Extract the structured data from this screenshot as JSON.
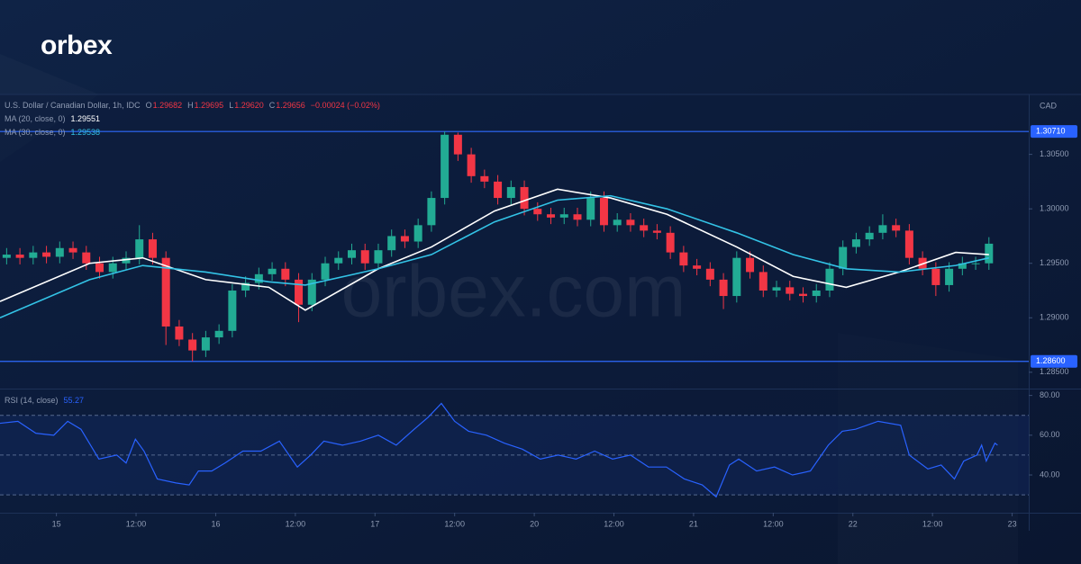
{
  "logo": "orbex",
  "watermark": "orbex.com",
  "chart_data": [
    {
      "type": "candlestick",
      "title": "U.S. Dollar / Canadian Dollar, 1h, IDC",
      "ohlc_header": [
        {
          "key": "O",
          "value": "1.29682"
        },
        {
          "key": "H",
          "value": "1.29695"
        },
        {
          "key": "L",
          "value": "1.29620"
        },
        {
          "key": "C",
          "value": "1.29656"
        }
      ],
      "change": "−0.00024 (−0.02%)",
      "currency": "CAD",
      "up_color": "#22ab94",
      "down_color": "#f23645",
      "x": [
        1,
        3,
        5,
        7,
        9,
        11,
        13,
        15,
        17,
        19,
        21,
        23,
        25,
        27,
        29,
        31,
        33,
        35,
        37,
        39,
        41,
        43,
        45,
        47,
        49,
        51,
        53,
        55,
        57,
        59,
        61,
        63,
        65,
        67,
        69,
        71,
        73,
        75,
        77,
        79,
        81,
        83,
        85,
        87,
        89,
        91,
        93,
        95,
        97,
        99,
        101,
        103,
        105,
        107,
        109,
        111,
        113,
        115,
        117,
        119,
        121,
        123,
        125,
        127,
        129,
        131,
        133,
        135,
        137,
        139,
        141,
        143,
        145,
        147,
        149
      ],
      "open": [
        1.2955,
        1.2958,
        1.2955,
        1.296,
        1.2956,
        1.2964,
        1.296,
        1.295,
        1.2942,
        1.295,
        1.2955,
        1.2972,
        1.2955,
        1.2892,
        1.288,
        1.287,
        1.2882,
        1.2888,
        1.2925,
        1.2932,
        1.294,
        1.2945,
        1.2935,
        1.2912,
        1.2935,
        1.295,
        1.2955,
        1.2962,
        1.295,
        1.2962,
        1.2975,
        1.297,
        1.2985,
        1.301,
        1.3068,
        1.305,
        1.303,
        1.3025,
        1.301,
        1.302,
        1.3,
        1.2995,
        1.2992,
        1.2995,
        1.299,
        1.301,
        1.2985,
        1.299,
        1.2985,
        1.298,
        1.2978,
        1.296,
        1.2948,
        1.2945,
        1.2935,
        1.292,
        1.2955,
        1.2942,
        1.2925,
        1.2928,
        1.2922,
        1.292,
        1.2925,
        1.2945,
        1.2965,
        1.2972,
        1.2978,
        1.2985,
        1.298,
        1.2955,
        1.2945,
        1.293,
        1.2945,
        1.295,
        1.295
      ],
      "high": [
        1.2964,
        1.2964,
        1.2966,
        1.2966,
        1.297,
        1.297,
        1.2966,
        1.2956,
        1.2956,
        1.2961,
        1.2985,
        1.2978,
        1.2961,
        1.2898,
        1.2886,
        1.2888,
        1.2894,
        1.2931,
        1.2938,
        1.2946,
        1.2951,
        1.2951,
        1.2941,
        1.2941,
        1.2956,
        1.2961,
        1.2968,
        1.2968,
        1.2968,
        1.2981,
        1.2981,
        1.2991,
        1.3016,
        1.3071,
        1.307,
        1.3056,
        1.3036,
        1.3031,
        1.3026,
        1.3026,
        1.3006,
        1.3001,
        1.3001,
        1.3001,
        1.3016,
        1.3016,
        1.2996,
        1.2996,
        1.2991,
        1.2986,
        1.2984,
        1.2966,
        1.2954,
        1.2951,
        1.2941,
        1.2961,
        1.2961,
        1.2948,
        1.2934,
        1.2934,
        1.2928,
        1.2931,
        1.2951,
        1.2971,
        1.2978,
        1.2984,
        1.2995,
        1.2991,
        1.2986,
        1.2961,
        1.2951,
        1.2951,
        1.2956,
        1.2956,
        1.2974
      ],
      "low": [
        1.2949,
        1.2949,
        1.2949,
        1.295,
        1.295,
        1.2954,
        1.2944,
        1.2936,
        1.2936,
        1.2944,
        1.2949,
        1.2949,
        1.2875,
        1.2874,
        1.286,
        1.2864,
        1.2876,
        1.2882,
        1.2919,
        1.2926,
        1.2934,
        1.2929,
        1.2896,
        1.2906,
        1.2929,
        1.2944,
        1.2949,
        1.2944,
        1.2944,
        1.2956,
        1.2964,
        1.2964,
        1.2979,
        1.3004,
        1.3044,
        1.3024,
        1.3019,
        1.3004,
        1.3004,
        1.2994,
        1.2989,
        1.2986,
        1.2986,
        1.2984,
        1.2984,
        1.2979,
        1.2979,
        1.2979,
        1.2974,
        1.2972,
        1.2954,
        1.2942,
        1.2939,
        1.2929,
        1.2908,
        1.2914,
        1.2936,
        1.2919,
        1.2919,
        1.2916,
        1.2914,
        1.2914,
        1.2919,
        1.2939,
        1.2959,
        1.2966,
        1.2972,
        1.2974,
        1.2949,
        1.2939,
        1.292,
        1.2924,
        1.2939,
        1.2944,
        1.2944
      ],
      "close": [
        1.2958,
        1.2955,
        1.296,
        1.2956,
        1.2964,
        1.296,
        1.295,
        1.2942,
        1.295,
        1.2955,
        1.2972,
        1.2955,
        1.2892,
        1.288,
        1.287,
        1.2882,
        1.2888,
        1.2925,
        1.2932,
        1.294,
        1.2945,
        1.2935,
        1.2912,
        1.2935,
        1.295,
        1.2955,
        1.2962,
        1.295,
        1.2962,
        1.2975,
        1.297,
        1.2985,
        1.301,
        1.3068,
        1.305,
        1.303,
        1.3025,
        1.301,
        1.302,
        1.3,
        1.2995,
        1.2992,
        1.2995,
        1.299,
        1.301,
        1.2985,
        1.299,
        1.2985,
        1.298,
        1.2978,
        1.296,
        1.2948,
        1.2945,
        1.2935,
        1.292,
        1.2955,
        1.2942,
        1.2925,
        1.2928,
        1.2922,
        1.292,
        1.2925,
        1.2945,
        1.2965,
        1.2972,
        1.2978,
        1.2985,
        1.298,
        1.2955,
        1.2945,
        1.293,
        1.2945,
        1.295,
        1.295,
        1.2968
      ],
      "moving_averages": [
        {
          "name": "MA (20, close, 0)",
          "last": "1.29551",
          "color": "#ffffff",
          "x": [
            0,
            13.5,
            21.5,
            31,
            40.5,
            46,
            57,
            65,
            74.5,
            84,
            92,
            100.5,
            111,
            119.5,
            127.5,
            135.5,
            144,
            149
          ],
          "values": [
            1.2915,
            1.295,
            1.2955,
            1.2935,
            1.2928,
            1.2907,
            1.2945,
            1.2965,
            1.2998,
            1.3018,
            1.301,
            1.2995,
            1.2965,
            1.2938,
            1.2928,
            1.2942,
            1.296,
            1.2958
          ]
        },
        {
          "name": "MA (30, close, 0)",
          "last": "1.29538",
          "color": "#33c3e6",
          "x": [
            0,
            13.5,
            21.5,
            31,
            40.5,
            46,
            57,
            65,
            74.5,
            84,
            92,
            100.5,
            111,
            119.5,
            127.5,
            135.5,
            144,
            149
          ],
          "values": [
            1.29,
            1.2935,
            1.2948,
            1.2942,
            1.2933,
            1.293,
            1.2945,
            1.2958,
            1.2988,
            1.3008,
            1.3012,
            1.3,
            1.2978,
            1.2958,
            1.2945,
            1.2942,
            1.2948,
            1.2955
          ]
        }
      ],
      "levels": [
        {
          "value": 1.3071,
          "label": "1.30710"
        },
        {
          "value": 1.286,
          "label": "1.28600"
        }
      ],
      "xlim": [
        0,
        155
      ],
      "ylim": [
        1.2835,
        1.3105
      ],
      "yticks": [
        {
          "value": 1.305,
          "label": "1.30500"
        },
        {
          "value": 1.3,
          "label": "1.30000"
        },
        {
          "value": 1.295,
          "label": "1.29500"
        },
        {
          "value": 1.29,
          "label": "1.29000"
        },
        {
          "value": 1.285,
          "label": "1.28500"
        }
      ]
    },
    {
      "type": "line",
      "title": "RSI (14, close)",
      "last": "55.27",
      "color": "#2962ff",
      "x": [
        0,
        2.7,
        5.4,
        8.1,
        10.2,
        12.2,
        14.9,
        17.6,
        19,
        20.4,
        21.7,
        23.7,
        26.5,
        28.5,
        29.9,
        31.9,
        33.9,
        36.6,
        39.3,
        42.1,
        44.8,
        46.8,
        48.8,
        51.6,
        54.3,
        57,
        59.7,
        62.4,
        64.5,
        66.5,
        68.5,
        70.6,
        73.3,
        76,
        78.7,
        81.4,
        84.1,
        86.8,
        89.6,
        92.3,
        95,
        97.7,
        100.4,
        103.1,
        105.8,
        107.9,
        109.9,
        111.3,
        114,
        116.7,
        119.4,
        122.1,
        124.8,
        126.9,
        128.9,
        132.3,
        135.7,
        137,
        139.8,
        141.8,
        143.8,
        145.2,
        147.2,
        147.9,
        148.6,
        149.9,
        150.3
      ],
      "values": [
        66,
        67,
        61,
        60,
        67,
        63,
        48,
        50,
        46,
        58,
        52,
        38,
        36,
        35,
        42,
        42,
        46,
        52,
        52,
        57,
        44,
        50,
        57,
        55,
        57,
        60,
        55,
        63,
        69,
        76,
        67,
        62,
        60,
        56,
        53,
        48,
        50,
        48,
        52,
        48,
        50,
        44,
        44,
        38,
        35,
        29,
        45,
        48,
        42,
        44,
        40,
        42,
        55,
        62,
        63,
        67,
        65,
        50,
        43,
        45,
        38,
        47,
        50,
        55,
        47,
        56,
        55
      ],
      "xlim": [
        0,
        155
      ],
      "ylim": [
        21,
        83
      ],
      "yticks": [
        {
          "value": 40,
          "label": "40.00"
        },
        {
          "value": 60,
          "label": "60.00"
        },
        {
          "value": 80,
          "label": "80.00"
        }
      ],
      "band": [
        30,
        70
      ],
      "midline": 50,
      "xticks": [
        {
          "value": 8.5,
          "label": "15"
        },
        {
          "value": 20.5,
          "label": "12:00"
        },
        {
          "value": 32.5,
          "label": "16"
        },
        {
          "value": 44.5,
          "label": "12:00"
        },
        {
          "value": 56.5,
          "label": "17"
        },
        {
          "value": 68.5,
          "label": "12:00"
        },
        {
          "value": 80.5,
          "label": "20"
        },
        {
          "value": 92.5,
          "label": "12:00"
        },
        {
          "value": 104.5,
          "label": "21"
        },
        {
          "value": 116.5,
          "label": "12:00"
        },
        {
          "value": 128.5,
          "label": "22"
        },
        {
          "value": 140.5,
          "label": "12:00"
        },
        {
          "value": 152.5,
          "label": "23"
        }
      ]
    }
  ]
}
